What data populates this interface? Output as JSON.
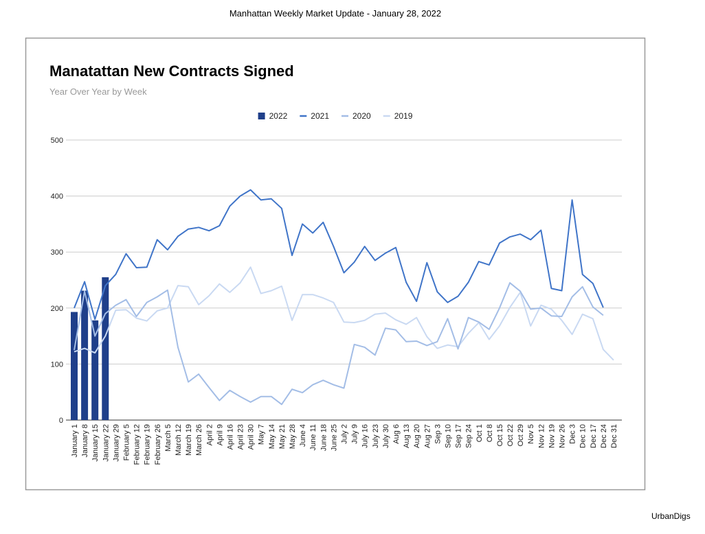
{
  "header": "Manhattan Weekly Market Update - January 28, 2022",
  "footer": "UrbanDigs",
  "chart_data": {
    "type": "bar_line",
    "title": "Manatattan New Contracts Signed",
    "subtitle": "Year Over Year by Week",
    "categories": [
      "January 1",
      "January 8",
      "January 15",
      "January 22",
      "January 29",
      "February 5",
      "February 12",
      "February 19",
      "February 26",
      "March 5",
      "March 12",
      "March 19",
      "March 26",
      "April 2",
      "April 9",
      "April 16",
      "April 23",
      "April 30",
      "May 7",
      "May 14",
      "May 21",
      "May 28",
      "June 4",
      "June 11",
      "June 18",
      "June 25",
      "July 2",
      "July 9",
      "July 16",
      "July 23",
      "July 30",
      "Aug 6",
      "Aug 13",
      "Aug 20",
      "Aug 27",
      "Sep 3",
      "Sep 10",
      "Sep 17",
      "Sep 24",
      "Oct 1",
      "Oct 8",
      "Oct 15",
      "Oct 22",
      "Oct 29",
      "Nov 5",
      "Nov 12",
      "Nov 19",
      "Nov 26",
      "Dec 3",
      "Dec 10",
      "Dec 17",
      "Dec 24",
      "Dec 31"
    ],
    "series": [
      {
        "name": "2022",
        "type": "bar",
        "color": "#1f3f8a",
        "values": [
          193,
          231,
          178,
          255,
          null,
          null,
          null,
          null,
          null,
          null,
          null,
          null,
          null,
          null,
          null,
          null,
          null,
          null,
          null,
          null,
          null,
          null,
          null,
          null,
          null,
          null,
          null,
          null,
          null,
          null,
          null,
          null,
          null,
          null,
          null,
          null,
          null,
          null,
          null,
          null,
          null,
          null,
          null,
          null,
          null,
          null,
          null,
          null,
          null,
          null,
          null,
          null,
          null
        ]
      },
      {
        "name": "2021",
        "type": "line",
        "color": "#3f74c8",
        "values": [
          200,
          247,
          180,
          240,
          260,
          297,
          272,
          273,
          322,
          304,
          328,
          341,
          344,
          338,
          347,
          382,
          400,
          411,
          393,
          395,
          378,
          294,
          350,
          334,
          353,
          310,
          263,
          282,
          310,
          285,
          298,
          308,
          246,
          212,
          281,
          229,
          210,
          221,
          246,
          283,
          277,
          316,
          327,
          332,
          322,
          339,
          235,
          231,
          393,
          260,
          244,
          201,
          null
        ]
      },
      {
        "name": "2020",
        "type": "line",
        "color": "#a3bde6",
        "values": [
          125,
          230,
          150,
          190,
          205,
          215,
          185,
          210,
          220,
          232,
          130,
          68,
          82,
          58,
          35,
          53,
          42,
          32,
          42,
          42,
          28,
          55,
          49,
          63,
          71,
          63,
          57,
          135,
          130,
          116,
          164,
          161,
          140,
          141,
          133,
          140,
          181,
          127,
          183,
          175,
          162,
          200,
          245,
          230,
          198,
          200,
          186,
          185,
          220,
          238,
          202,
          187,
          null
        ]
      },
      {
        "name": "2019",
        "type": "line",
        "color": "#c9d9f2",
        "values": [
          122,
          128,
          120,
          150,
          196,
          197,
          182,
          177,
          195,
          200,
          240,
          238,
          206,
          222,
          243,
          228,
          245,
          273,
          226,
          231,
          239,
          178,
          224,
          224,
          218,
          210,
          175,
          174,
          178,
          189,
          191,
          179,
          171,
          183,
          149,
          128,
          134,
          131,
          155,
          174,
          144,
          168,
          201,
          228,
          168,
          205,
          198,
          178,
          153,
          189,
          181,
          126,
          107
        ]
      }
    ],
    "ylim": [
      0,
      500
    ],
    "yticks": [
      0,
      100,
      200,
      300,
      400,
      500
    ],
    "grid": true,
    "legend": "top"
  }
}
